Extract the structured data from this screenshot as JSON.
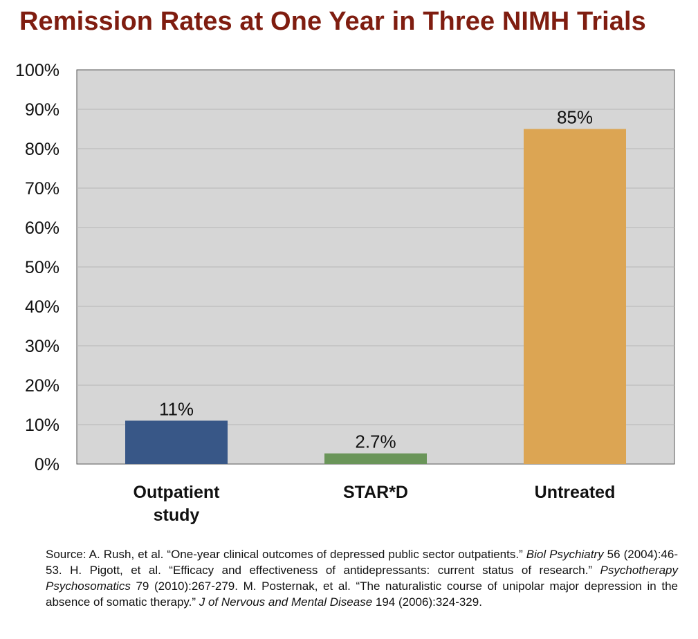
{
  "chart_data": {
    "type": "bar",
    "title": "Remission Rates at One Year in Three NIMH Trials",
    "categories": [
      {
        "lines": [
          "Outpatient",
          "study"
        ]
      },
      {
        "lines": [
          "STAR*D"
        ]
      },
      {
        "lines": [
          "Untreated"
        ]
      }
    ],
    "values": [
      11,
      2.7,
      85
    ],
    "data_labels": [
      "11%",
      "2.7%",
      "85%"
    ],
    "bar_colors": [
      "#385787",
      "#6a9559",
      "#dca553"
    ],
    "ylim": [
      0,
      100
    ],
    "yticks": [
      0,
      10,
      20,
      30,
      40,
      50,
      60,
      70,
      80,
      90,
      100
    ],
    "ytick_labels": [
      "0%",
      "10%",
      "20%",
      "30%",
      "40%",
      "50%",
      "60%",
      "70%",
      "80%",
      "90%",
      "100%"
    ],
    "grid": true,
    "plot_background": "#d6d6d6",
    "gridline_color": "#b6b6b6",
    "title_color": "#7f1d10"
  },
  "source": {
    "parts": [
      {
        "text": "Source:   A. Rush, et al. “One-year clinical outcomes of depressed public sector outpatients.” ",
        "italic": false
      },
      {
        "text": "Biol Psychiatry",
        "italic": true
      },
      {
        "text": " 56 (2004):46-53. H. Pigott, et al. “Efficacy and effectiveness of antidepressants: current status of research.” ",
        "italic": false
      },
      {
        "text": "Psychotherapy Psychosomatics",
        "italic": true
      },
      {
        "text": " 79 (2010):267-279. M. Posternak, et al. “The naturalistic course of unipolar major depression in the absence of somatic therapy.” ",
        "italic": false
      },
      {
        "text": "J of Nervous and Mental Disease",
        "italic": true
      },
      {
        "text": " 194 (2006):324-329.",
        "italic": false
      }
    ]
  }
}
